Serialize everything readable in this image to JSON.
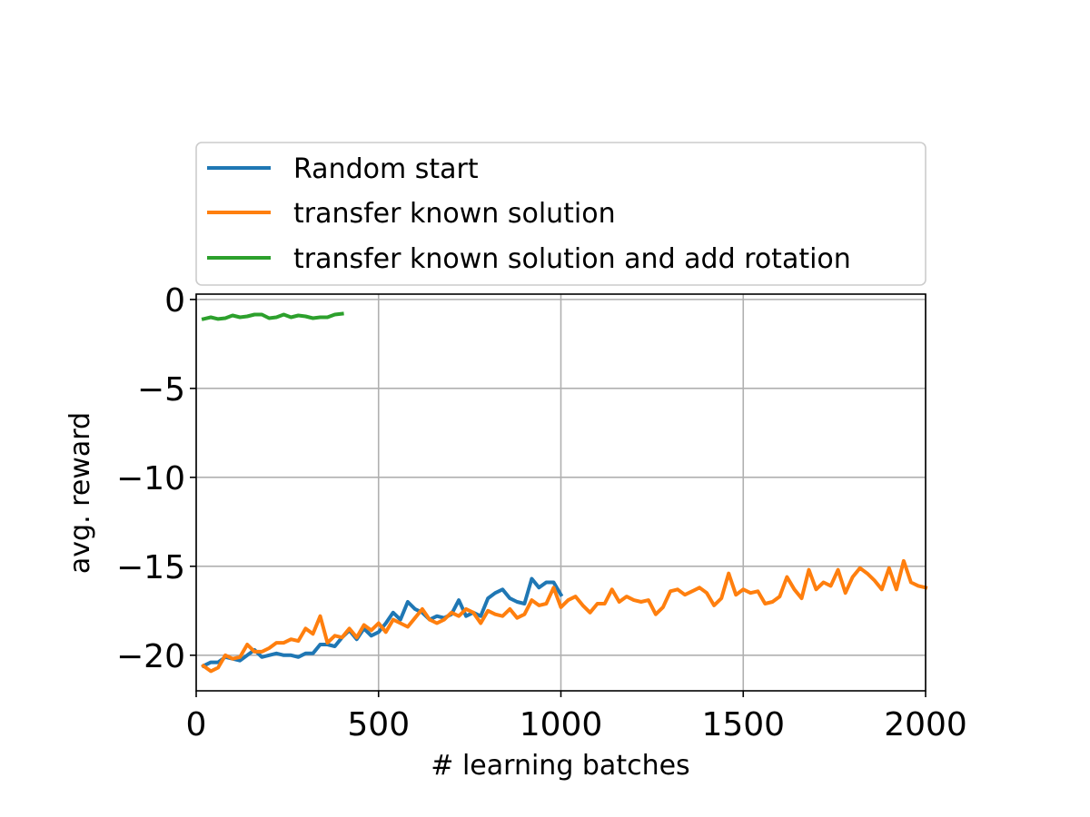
{
  "chart_data": {
    "type": "line",
    "xlabel": "# learning batches",
    "ylabel": "avg. reward",
    "xlim": [
      0,
      2000
    ],
    "ylim": [
      -22,
      0.3
    ],
    "xticks": [
      0,
      500,
      1000,
      1500,
      2000
    ],
    "yticks": [
      0,
      -5,
      -10,
      -15,
      -20
    ],
    "grid": true,
    "legend_position": "upper, above plot area",
    "series": [
      {
        "name": "Random start",
        "color": "#1f77b4",
        "x": [
          20,
          40,
          60,
          80,
          100,
          120,
          140,
          160,
          180,
          200,
          220,
          240,
          260,
          280,
          300,
          320,
          340,
          360,
          380,
          400,
          420,
          440,
          460,
          480,
          500,
          520,
          540,
          560,
          580,
          600,
          620,
          640,
          660,
          680,
          700,
          720,
          740,
          760,
          780,
          800,
          820,
          840,
          860,
          880,
          900,
          920,
          940,
          960,
          980,
          1000
        ],
        "y": [
          -20.6,
          -20.4,
          -20.4,
          -20.1,
          -20.2,
          -20.3,
          -20.0,
          -19.7,
          -20.1,
          -20.0,
          -19.9,
          -20.0,
          -20.0,
          -20.1,
          -19.9,
          -19.9,
          -19.4,
          -19.4,
          -19.5,
          -19.0,
          -18.6,
          -19.1,
          -18.5,
          -18.9,
          -18.7,
          -18.2,
          -17.6,
          -18.0,
          -17.0,
          -17.4,
          -17.6,
          -18.0,
          -17.8,
          -17.9,
          -17.7,
          -16.9,
          -17.8,
          -17.6,
          -17.8,
          -16.8,
          -16.5,
          -16.3,
          -16.8,
          -17.0,
          -17.1,
          -15.7,
          -16.2,
          -15.9,
          -15.9,
          -16.6
        ]
      },
      {
        "name": "transfer known solution",
        "color": "#ff7f0e",
        "x": [
          20,
          40,
          60,
          80,
          100,
          120,
          140,
          160,
          180,
          200,
          220,
          240,
          260,
          280,
          300,
          320,
          340,
          360,
          380,
          400,
          420,
          440,
          460,
          480,
          500,
          520,
          540,
          560,
          580,
          600,
          620,
          640,
          660,
          680,
          700,
          720,
          740,
          760,
          780,
          800,
          820,
          840,
          860,
          880,
          900,
          920,
          940,
          960,
          980,
          1000,
          1020,
          1040,
          1060,
          1080,
          1100,
          1120,
          1140,
          1160,
          1180,
          1200,
          1220,
          1240,
          1260,
          1280,
          1300,
          1320,
          1340,
          1360,
          1380,
          1400,
          1420,
          1440,
          1460,
          1480,
          1500,
          1520,
          1540,
          1560,
          1580,
          1600,
          1620,
          1640,
          1660,
          1680,
          1700,
          1720,
          1740,
          1760,
          1780,
          1800,
          1820,
          1840,
          1860,
          1880,
          1900,
          1920,
          1940,
          1960,
          1980,
          2000
        ],
        "y": [
          -20.6,
          -20.9,
          -20.7,
          -20.0,
          -20.2,
          -20.1,
          -19.4,
          -19.8,
          -19.8,
          -19.6,
          -19.3,
          -19.3,
          -19.1,
          -19.2,
          -18.5,
          -18.8,
          -17.8,
          -19.3,
          -18.9,
          -19.0,
          -18.5,
          -19.0,
          -18.3,
          -18.6,
          -18.2,
          -18.7,
          -18.0,
          -18.2,
          -18.4,
          -17.9,
          -17.4,
          -18.0,
          -18.2,
          -18.0,
          -17.6,
          -17.8,
          -17.4,
          -17.6,
          -18.2,
          -17.5,
          -17.7,
          -17.8,
          -17.4,
          -17.9,
          -17.7,
          -16.9,
          -17.2,
          -17.1,
          -16.2,
          -17.3,
          -16.9,
          -16.7,
          -17.2,
          -17.6,
          -17.1,
          -17.1,
          -16.3,
          -17.0,
          -16.7,
          -16.9,
          -17.0,
          -16.9,
          -17.7,
          -17.3,
          -16.4,
          -16.3,
          -16.6,
          -16.4,
          -16.2,
          -16.5,
          -17.2,
          -16.8,
          -15.4,
          -16.6,
          -16.3,
          -16.5,
          -16.4,
          -17.1,
          -17.0,
          -16.7,
          -15.6,
          -16.3,
          -16.8,
          -15.2,
          -16.3,
          -15.9,
          -16.1,
          -15.2,
          -16.5,
          -15.6,
          -15.1,
          -15.4,
          -15.8,
          -16.3,
          -15.1,
          -16.3,
          -14.7,
          -15.9,
          -16.1,
          -16.2
        ]
      },
      {
        "name": "transfer known solution and add rotation",
        "color": "#2ca02c",
        "x": [
          20,
          40,
          60,
          80,
          100,
          120,
          140,
          160,
          180,
          200,
          220,
          240,
          260,
          280,
          300,
          320,
          340,
          360,
          380,
          400
        ],
        "y": [
          -1.1,
          -1.0,
          -1.1,
          -1.05,
          -0.9,
          -1.0,
          -0.95,
          -0.85,
          -0.85,
          -1.05,
          -1.0,
          -0.85,
          -1.0,
          -0.9,
          -0.95,
          -1.05,
          -1.0,
          -1.0,
          -0.85,
          -0.8
        ]
      }
    ]
  }
}
